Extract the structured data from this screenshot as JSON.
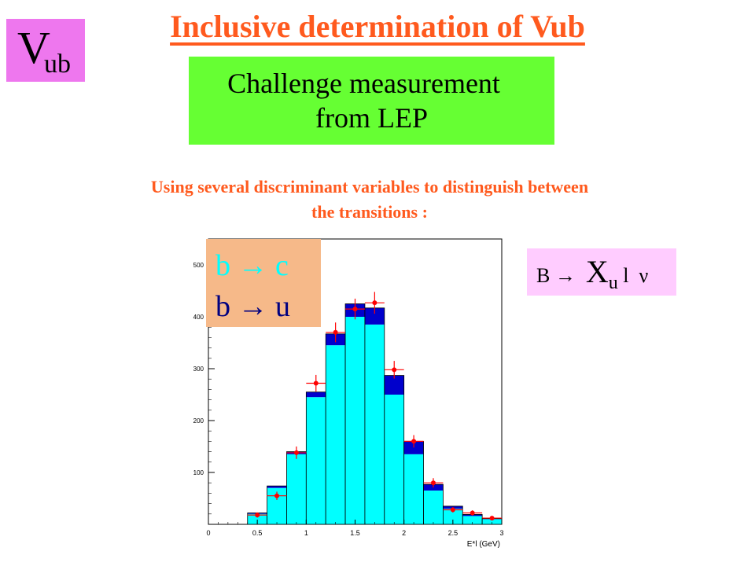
{
  "corner_label": {
    "main": "V",
    "sub": "ub"
  },
  "title": "Inclusive determination of Vub",
  "highlight": {
    "line1": "Challenge measurement",
    "line2": "from LEP"
  },
  "subtitle": {
    "line1": "Using several discriminant variables to distinguish between",
    "line2": "the transitions :"
  },
  "formula": {
    "b": "B",
    "arrow": "→",
    "x": "X",
    "x_sub": "u",
    "l": "l",
    "nu": "ν"
  },
  "legend": [
    {
      "text": "b → c",
      "color": "#00ffff"
    },
    {
      "text": "b → u",
      "color": "#000080"
    }
  ],
  "chart_data": {
    "type": "bar",
    "title": "",
    "xlabel": "E*l (GeV)",
    "ylabel": "",
    "xlim": [
      0,
      3
    ],
    "ylim": [
      0,
      550
    ],
    "x_ticks": [
      "0",
      "0.5",
      "1",
      "1.5",
      "2",
      "2.5",
      "3"
    ],
    "y_ticks": [
      "100",
      "200",
      "300",
      "400",
      "500"
    ],
    "bin_edges": [
      0.4,
      0.6,
      0.8,
      1.0,
      1.2,
      1.4,
      1.6,
      1.8,
      2.0,
      2.2,
      2.4,
      2.6,
      2.8,
      3.0
    ],
    "series": [
      {
        "name": "b → c",
        "values": [
          20,
          70,
          135,
          245,
          345,
          400,
          385,
          250,
          135,
          65,
          30,
          16,
          10
        ],
        "color": "#00ffff"
      },
      {
        "name": "b → u",
        "values": [
          2,
          4,
          5,
          10,
          22,
          25,
          32,
          37,
          25,
          12,
          5,
          3,
          1
        ],
        "color": "#0000cc"
      }
    ],
    "data_points": {
      "x": [
        0.5,
        0.7,
        0.9,
        1.1,
        1.3,
        1.5,
        1.7,
        1.9,
        2.1,
        2.3,
        2.5,
        2.7,
        2.9
      ],
      "y": [
        18,
        55,
        138,
        272,
        370,
        415,
        427,
        298,
        160,
        80,
        28,
        22,
        12
      ],
      "yerr": [
        5,
        8,
        12,
        16,
        19,
        20,
        21,
        17,
        12,
        9,
        5,
        5,
        3
      ],
      "color": "#ff0000"
    }
  }
}
